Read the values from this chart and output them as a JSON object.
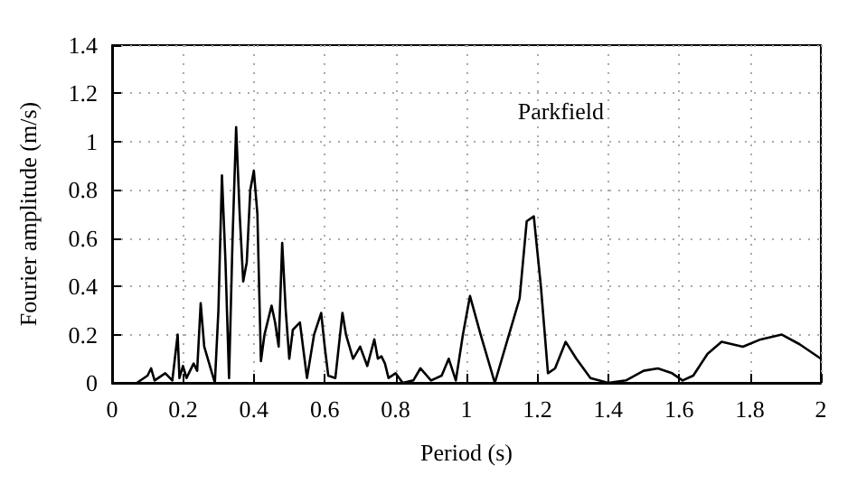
{
  "chart_data": {
    "type": "line",
    "xlabel": "Period (s)",
    "ylabel": "Fourier amplitude (m/s)",
    "annotations": [
      "Parkfield"
    ],
    "x": [
      0.07,
      0.1,
      0.11,
      0.12,
      0.15,
      0.17,
      0.185,
      0.19,
      0.2,
      0.21,
      0.23,
      0.24,
      0.25,
      0.26,
      0.28,
      0.29,
      0.3,
      0.31,
      0.32,
      0.33,
      0.34,
      0.35,
      0.36,
      0.37,
      0.38,
      0.39,
      0.4,
      0.41,
      0.42,
      0.43,
      0.45,
      0.46,
      0.47,
      0.48,
      0.49,
      0.5,
      0.51,
      0.53,
      0.55,
      0.57,
      0.59,
      0.6,
      0.61,
      0.63,
      0.65,
      0.66,
      0.68,
      0.7,
      0.72,
      0.74,
      0.75,
      0.76,
      0.77,
      0.78,
      0.8,
      0.82,
      0.85,
      0.87,
      0.9,
      0.93,
      0.95,
      0.97,
      0.99,
      1.01,
      1.04,
      1.08,
      1.12,
      1.15,
      1.17,
      1.19,
      1.21,
      1.23,
      1.25,
      1.28,
      1.31,
      1.35,
      1.4,
      1.45,
      1.5,
      1.54,
      1.58,
      1.61,
      1.64,
      1.68,
      1.72,
      1.78,
      1.83,
      1.89,
      1.94,
      2.0
    ],
    "series": [
      {
        "color": "#000000",
        "values": [
          0,
          0.03,
          0.06,
          0.01,
          0.04,
          0.01,
          0.2,
          0.02,
          0.07,
          0.02,
          0.08,
          0.05,
          0.33,
          0.15,
          0.05,
          0,
          0.3,
          0.86,
          0.5,
          0.02,
          0.6,
          1.06,
          0.7,
          0.42,
          0.5,
          0.8,
          0.88,
          0.7,
          0.09,
          0.2,
          0.32,
          0.25,
          0.15,
          0.58,
          0.3,
          0.1,
          0.22,
          0.25,
          0.02,
          0.2,
          0.29,
          0.15,
          0.03,
          0.02,
          0.29,
          0.2,
          0.1,
          0.15,
          0.07,
          0.18,
          0.1,
          0.11,
          0.08,
          0.02,
          0.04,
          0,
          0.01,
          0.06,
          0.01,
          0.03,
          0.1,
          0.01,
          0.2,
          0.36,
          0.2,
          0,
          0.2,
          0.35,
          0.67,
          0.69,
          0.4,
          0.04,
          0.06,
          0.17,
          0.1,
          0.02,
          0,
          0.01,
          0.05,
          0.06,
          0.04,
          0.01,
          0.03,
          0.12,
          0.17,
          0.15,
          0.18,
          0.2,
          0.16,
          0.1
        ]
      }
    ],
    "xlim": [
      0,
      2
    ],
    "xticks": [
      0,
      0.2,
      0.4,
      0.6,
      0.8,
      1,
      1.2,
      1.4,
      1.6,
      1.8,
      2
    ],
    "ylim": [
      0,
      1.4
    ],
    "yticks": [
      0,
      0.2,
      0.4,
      0.6,
      0.8,
      1,
      1.2,
      1.4
    ],
    "grid": true,
    "marker": "none",
    "line_style": "solid"
  }
}
